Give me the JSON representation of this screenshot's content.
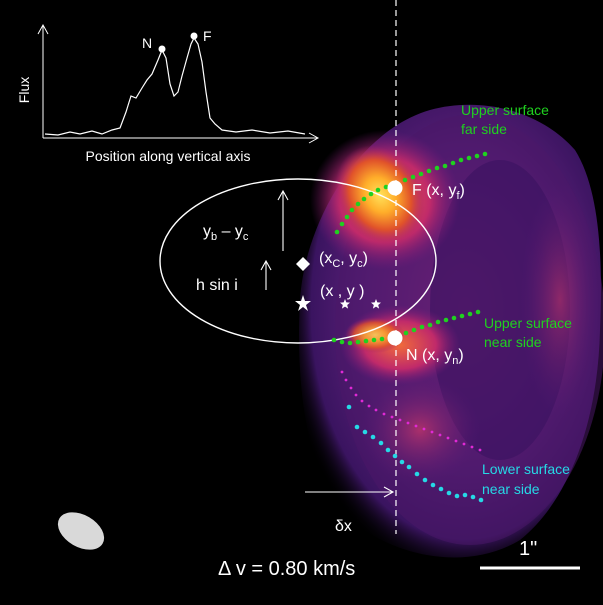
{
  "inset": {
    "y_label": "Flux",
    "x_label": "Position along vertical axis",
    "peak_near_label": "N",
    "peak_far_label": "F"
  },
  "labels": {
    "point_far": "F (x, y",
    "point_far_sub": "f",
    "point_far_close": ")",
    "point_near": "N (x, y",
    "point_near_sub": "n",
    "point_near_close": ")",
    "center_open": "(x",
    "center_sub": "C",
    "center_mid": ", y",
    "center_close": ")",
    "star_label": "(x , y )",
    "height_b": "y",
    "height_b_sub": "b",
    "height_c": "– y",
    "height_c_sub": "c",
    "h_sin_i": "h sin i",
    "delta_x": "δx",
    "channel": "Δ v = 0.80 km/s",
    "scale_bar": "1\"",
    "upper_far": [
      "Upper surface",
      "far side"
    ],
    "upper_near": [
      "Upper surface",
      "near side"
    ],
    "lower_near": [
      "Lower surface",
      "near side"
    ]
  },
  "colors": {
    "background": "#000000",
    "upper_surface": "#1fd11f",
    "lower_surface": "#26d9e6",
    "magenta_trace": "#e02ad6",
    "annotation": "#ffffff",
    "beam": "#d9d9d9",
    "emission_peak": "#ffd23a",
    "emission_mid": "#e0522a",
    "emission_low": "#6a1a7a"
  }
}
